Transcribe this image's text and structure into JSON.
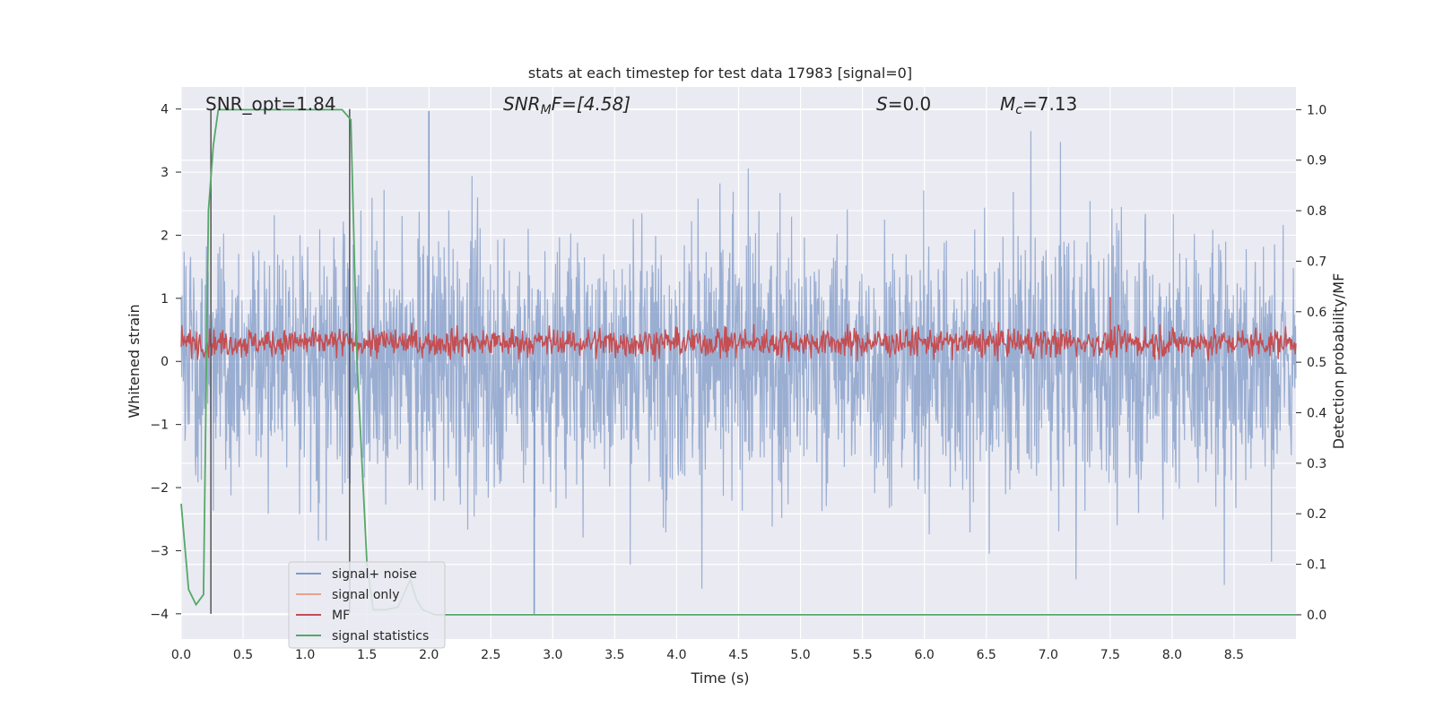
{
  "chart_data": {
    "type": "line",
    "title": "stats at each timestep for test data 17983 [signal=0]",
    "xlabel": "Time (s)",
    "ylabel": "Whitened strain",
    "ylabel_right": "Detection probability/MF",
    "xlim": [
      0.0,
      9.0
    ],
    "ylim": [
      -4.4,
      4.35
    ],
    "ylim_right": [
      -0.048,
      1.045
    ],
    "x_ticks": [
      "0.0",
      "0.5",
      "1.0",
      "1.5",
      "2.0",
      "2.5",
      "3.0",
      "3.5",
      "4.0",
      "4.5",
      "5.0",
      "5.5",
      "6.0",
      "6.5",
      "7.0",
      "7.5",
      "8.0",
      "8.5"
    ],
    "y_ticks": [
      "4",
      "3",
      "2",
      "1",
      "0",
      "−1",
      "−2",
      "−3",
      "−4"
    ],
    "y_ticks_right": [
      "1.0",
      "0.9",
      "0.8",
      "0.7",
      "0.6",
      "0.5",
      "0.4",
      "0.3",
      "0.2",
      "0.1",
      "0.0"
    ],
    "annotations": {
      "snr_opt": "SNR_opt=1.84",
      "snr_mf_sym": "SNR",
      "snr_mf_sub": "M",
      "snr_mf_rest": "F=[4.58]",
      "s_sym": "S",
      "s_rest": "=0.0",
      "mc_sym": "M",
      "mc_sub": "c",
      "mc_rest": "=7.13"
    },
    "markers_x": [
      0.24,
      1.36
    ],
    "series": [
      {
        "name": "signal+ noise",
        "color": "#7f9ac7",
        "typical_range": [
          -2.7,
          3.6
        ],
        "peak_max": 3.97,
        "peak_min": -4.0,
        "peak_min_x": 2.85
      },
      {
        "name": "signal only",
        "color": "#e8a28a",
        "values": []
      },
      {
        "name": "MF",
        "color": "#c44e52",
        "typical_range": [
          0.0,
          0.7
        ],
        "spike": {
          "x": 7.5,
          "y": 1.02
        }
      },
      {
        "name": "signal statistics",
        "color": "#55a868",
        "axis": "right",
        "x": [
          0.0,
          0.06,
          0.12,
          0.18,
          0.22,
          0.26,
          0.3,
          0.6,
          1.0,
          1.3,
          1.37,
          1.42,
          1.5,
          1.55,
          1.65,
          1.75,
          1.85,
          1.9,
          1.95,
          2.05,
          2.2,
          3.0,
          4.0,
          5.0,
          6.0,
          7.0,
          8.0,
          9.0
        ],
        "values": [
          0.22,
          0.05,
          0.02,
          0.04,
          0.8,
          0.93,
          1.0,
          1.0,
          1.0,
          1.0,
          0.98,
          0.5,
          0.1,
          0.01,
          0.01,
          0.015,
          0.07,
          0.03,
          0.01,
          0.0,
          0.0,
          0.0,
          0.0,
          0.0,
          0.0,
          0.0,
          0.0,
          0.0
        ]
      }
    ],
    "legend_position": "lower-left"
  }
}
